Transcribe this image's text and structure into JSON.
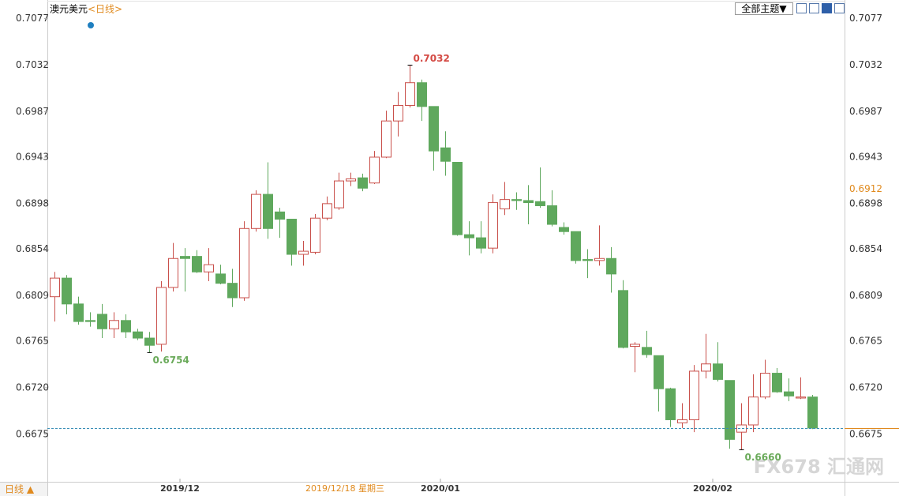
{
  "header": {
    "symbol": "澳元美元",
    "period": "<日线>",
    "theme_button": "全部主题▼",
    "period_button": "日线 ▲",
    "watermark": "FX678 汇通网"
  },
  "chart_data": {
    "type": "candlestick",
    "categories": [
      null,
      null,
      null,
      null,
      null,
      null,
      null,
      null,
      null,
      null,
      "2019/12",
      null,
      null,
      null,
      null,
      null,
      null,
      null,
      null,
      null,
      null,
      null,
      null,
      null,
      null,
      null,
      null,
      null,
      null,
      null,
      null,
      null,
      "2020/01",
      null,
      null,
      null,
      null,
      null,
      null,
      null,
      null,
      null,
      null,
      null,
      null,
      null,
      null,
      null,
      null,
      null,
      null,
      null,
      null,
      null,
      null,
      "2020/02",
      null,
      null,
      null,
      null,
      null,
      null,
      null,
      null,
      null
    ],
    "open": [
      0.6808,
      0.6826,
      0.6801,
      0.6785,
      0.6791,
      0.6777,
      0.6785,
      0.6774,
      0.6768,
      0.6762,
      0.6817,
      0.6847,
      0.6847,
      0.6832,
      0.683,
      0.6821,
      0.6807,
      0.6874,
      0.6907,
      0.689,
      0.6883,
      0.6849,
      0.6851,
      0.6884,
      0.6894,
      0.692,
      0.6923,
      0.6918,
      0.6943,
      0.6978,
      0.6993,
      0.7015,
      0.6992,
      0.6952,
      0.6938,
      0.6868,
      0.6865,
      0.6855,
      0.6893,
      0.6902,
      0.6901,
      0.69,
      0.6896,
      0.6875,
      0.6871,
      0.6844,
      0.6843,
      0.6845,
      0.6814,
      0.676,
      0.6759,
      0.6751,
      0.6719,
      0.6686,
      0.6689,
      0.6736,
      0.6743,
      0.6727,
      0.6677,
      0.6684,
      0.6711,
      0.6734,
      0.6716,
      0.671,
      0.6711
    ],
    "high": [
      0.6832,
      0.6829,
      0.6808,
      0.6793,
      0.6801,
      0.6793,
      0.6791,
      0.6777,
      0.6774,
      0.6823,
      0.686,
      0.6855,
      0.6853,
      0.6855,
      0.6839,
      0.6835,
      0.6881,
      0.6911,
      0.6938,
      0.6894,
      0.6883,
      0.6862,
      0.6888,
      0.6905,
      0.6928,
      0.6928,
      0.6927,
      0.6949,
      0.6988,
      0.7006,
      0.7032,
      0.7018,
      0.6992,
      0.6968,
      0.6938,
      0.6881,
      0.6881,
      0.6907,
      0.6919,
      0.6909,
      0.6916,
      0.6933,
      0.6911,
      0.688,
      0.6871,
      0.6854,
      0.6877,
      0.6856,
      0.6824,
      0.6764,
      0.6775,
      0.6751,
      0.672,
      0.6705,
      0.6742,
      0.6772,
      0.6764,
      0.6727,
      0.6705,
      0.6733,
      0.6747,
      0.6739,
      0.6729,
      0.673,
      0.6713
    ],
    "low": [
      0.6784,
      0.6791,
      0.6781,
      0.6779,
      0.6768,
      0.6768,
      0.6768,
      0.6766,
      0.6754,
      0.6755,
      0.6813,
      0.6813,
      0.6831,
      0.6823,
      0.682,
      0.6798,
      0.6804,
      0.6871,
      0.6864,
      0.6865,
      0.6838,
      0.6838,
      0.6849,
      0.6882,
      0.6892,
      0.6915,
      0.691,
      0.6917,
      0.6942,
      0.6963,
      0.6991,
      0.6978,
      0.693,
      0.6925,
      0.6867,
      0.6848,
      0.685,
      0.685,
      0.6887,
      0.6892,
      0.6878,
      0.6894,
      0.6876,
      0.6868,
      0.684,
      0.6826,
      0.6838,
      0.6812,
      0.6758,
      0.6735,
      0.6749,
      0.6697,
      0.6682,
      0.6681,
      0.6677,
      0.6729,
      0.6726,
      0.6661,
      0.666,
      0.6677,
      0.6709,
      0.6715,
      0.6707,
      0.6709,
      0.668
    ],
    "close": [
      0.6826,
      0.6801,
      0.6784,
      0.6784,
      0.6777,
      0.6785,
      0.6774,
      0.6768,
      0.6761,
      0.6817,
      0.6845,
      0.6845,
      0.6832,
      0.6839,
      0.6821,
      0.6807,
      0.6874,
      0.6907,
      0.6874,
      0.6883,
      0.6849,
      0.6852,
      0.6884,
      0.6898,
      0.692,
      0.6922,
      0.6913,
      0.6943,
      0.6978,
      0.6993,
      0.7015,
      0.6992,
      0.6949,
      0.6939,
      0.6868,
      0.6865,
      0.6855,
      0.6899,
      0.6902,
      0.6901,
      0.6899,
      0.6896,
      0.6878,
      0.6871,
      0.6843,
      0.6843,
      0.6845,
      0.683,
      0.6759,
      0.6762,
      0.6752,
      0.6719,
      0.6689,
      0.6689,
      0.6736,
      0.6743,
      0.6728,
      0.667,
      0.6684,
      0.6711,
      0.6734,
      0.6716,
      0.6712,
      0.6711,
      0.6681
    ],
    "up_color": "#c9504b",
    "down_color": "#5fa85d",
    "ylim": [
      0.6629,
      0.7095
    ],
    "yticks": [
      0.7077,
      0.7032,
      0.6987,
      0.6943,
      0.6898,
      0.6854,
      0.6809,
      0.6765,
      {
        "value": 0.672,
        "label": "0.6720"
      },
      0.6675
    ],
    "annotations": [
      "0.7032",
      "0.6754",
      "0.6660"
    ],
    "price_marker": "0.6912",
    "cursor_label": "2019/12/18 星期三"
  }
}
